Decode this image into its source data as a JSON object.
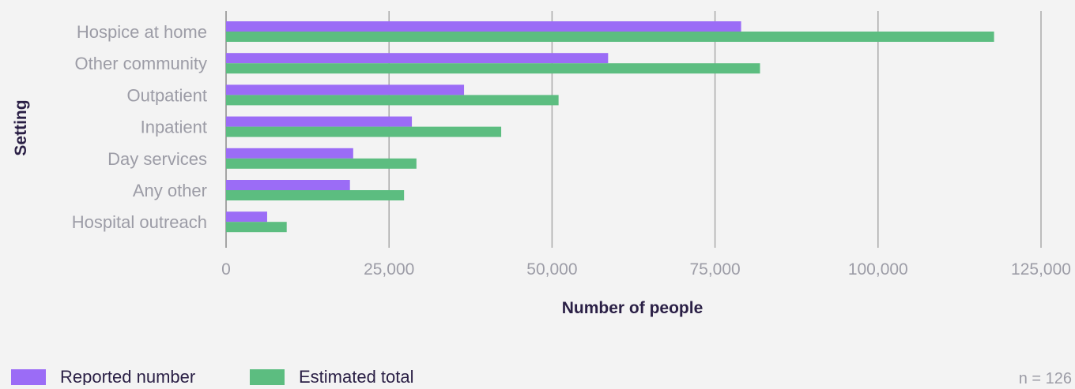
{
  "chart_data": {
    "type": "bar",
    "orientation": "horizontal",
    "categories": [
      "Hospice at home",
      "Other community",
      "Outpatient",
      "Inpatient",
      "Day services",
      "Any other",
      "Hospital outreach"
    ],
    "series": [
      {
        "name": "Reported number",
        "color": "#9b6cf6",
        "values": [
          79000,
          58600,
          36500,
          28500,
          19500,
          19000,
          6300
        ]
      },
      {
        "name": "Estimated total",
        "color": "#5cbd80",
        "values": [
          117800,
          81900,
          51000,
          42200,
          29200,
          27300,
          9300
        ]
      }
    ],
    "xlabel": "Number of people",
    "ylabel": "Setting",
    "xlim": [
      0,
      125000
    ],
    "xticks": [
      0,
      25000,
      50000,
      75000,
      100000,
      125000
    ],
    "xtick_labels": [
      "0",
      "25,000",
      "50,000",
      "75,000",
      "100,000",
      "125,000"
    ],
    "grid": "vertical",
    "legend_placement": "bottom-left",
    "note": "n = 126"
  }
}
